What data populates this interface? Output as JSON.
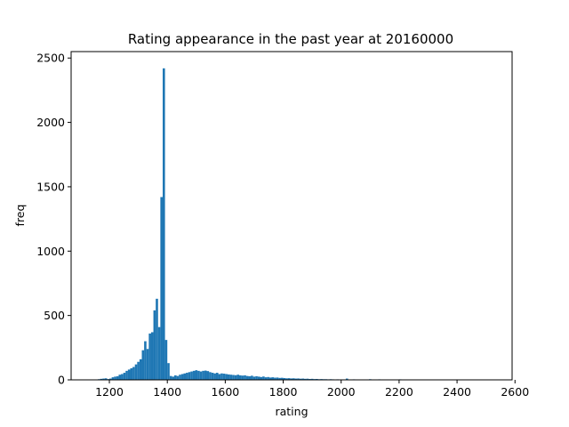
{
  "chart_data": {
    "type": "bar",
    "title": "Rating appearance in the past year at 20160000",
    "xlabel": "rating",
    "ylabel": "freq",
    "xlim": [
      1068,
      2590
    ],
    "ylim": [
      0,
      2550
    ],
    "xticks": [
      1200,
      1400,
      1600,
      1800,
      2000,
      2200,
      2400,
      2600
    ],
    "yticks": [
      0,
      500,
      1000,
      1500,
      2000,
      2500
    ],
    "grid": false,
    "bar_color": "#1f77b4",
    "bin_width": 8,
    "bins": [
      [
        1160,
        5
      ],
      [
        1168,
        8
      ],
      [
        1176,
        10
      ],
      [
        1184,
        12
      ],
      [
        1192,
        6
      ],
      [
        1200,
        10
      ],
      [
        1208,
        20
      ],
      [
        1216,
        25
      ],
      [
        1224,
        28
      ],
      [
        1232,
        40
      ],
      [
        1240,
        45
      ],
      [
        1248,
        55
      ],
      [
        1256,
        70
      ],
      [
        1264,
        80
      ],
      [
        1272,
        90
      ],
      [
        1280,
        100
      ],
      [
        1288,
        120
      ],
      [
        1296,
        140
      ],
      [
        1304,
        160
      ],
      [
        1312,
        230
      ],
      [
        1320,
        300
      ],
      [
        1328,
        240
      ],
      [
        1336,
        360
      ],
      [
        1344,
        370
      ],
      [
        1352,
        540
      ],
      [
        1360,
        630
      ],
      [
        1368,
        410
      ],
      [
        1376,
        1420
      ],
      [
        1384,
        2420
      ],
      [
        1392,
        310
      ],
      [
        1400,
        130
      ],
      [
        1408,
        30
      ],
      [
        1416,
        25
      ],
      [
        1424,
        35
      ],
      [
        1432,
        30
      ],
      [
        1440,
        40
      ],
      [
        1448,
        45
      ],
      [
        1456,
        50
      ],
      [
        1464,
        55
      ],
      [
        1472,
        60
      ],
      [
        1480,
        65
      ],
      [
        1488,
        70
      ],
      [
        1496,
        75
      ],
      [
        1504,
        70
      ],
      [
        1512,
        65
      ],
      [
        1520,
        70
      ],
      [
        1528,
        72
      ],
      [
        1536,
        68
      ],
      [
        1544,
        60
      ],
      [
        1552,
        55
      ],
      [
        1560,
        50
      ],
      [
        1568,
        55
      ],
      [
        1576,
        45
      ],
      [
        1584,
        50
      ],
      [
        1592,
        48
      ],
      [
        1600,
        45
      ],
      [
        1608,
        42
      ],
      [
        1616,
        40
      ],
      [
        1624,
        38
      ],
      [
        1632,
        36
      ],
      [
        1640,
        40
      ],
      [
        1648,
        35
      ],
      [
        1656,
        33
      ],
      [
        1664,
        35
      ],
      [
        1672,
        30
      ],
      [
        1680,
        28
      ],
      [
        1688,
        32
      ],
      [
        1696,
        25
      ],
      [
        1704,
        28
      ],
      [
        1712,
        25
      ],
      [
        1720,
        22
      ],
      [
        1728,
        26
      ],
      [
        1736,
        20
      ],
      [
        1744,
        22
      ],
      [
        1752,
        18
      ],
      [
        1760,
        20
      ],
      [
        1768,
        17
      ],
      [
        1776,
        18
      ],
      [
        1784,
        15
      ],
      [
        1792,
        16
      ],
      [
        1800,
        14
      ],
      [
        1808,
        12
      ],
      [
        1816,
        13
      ],
      [
        1824,
        11
      ],
      [
        1832,
        12
      ],
      [
        1840,
        10
      ],
      [
        1848,
        11
      ],
      [
        1856,
        9
      ],
      [
        1864,
        10
      ],
      [
        1872,
        8
      ],
      [
        1880,
        9
      ],
      [
        1888,
        7
      ],
      [
        1896,
        8
      ],
      [
        1904,
        6
      ],
      [
        1912,
        7
      ],
      [
        1920,
        5
      ],
      [
        1928,
        6
      ],
      [
        1936,
        5
      ],
      [
        1944,
        5
      ],
      [
        1952,
        4
      ],
      [
        1960,
        5
      ],
      [
        1968,
        4
      ],
      [
        1976,
        3
      ],
      [
        1984,
        4
      ],
      [
        1992,
        3
      ],
      [
        2000,
        3
      ],
      [
        2016,
        10
      ],
      [
        2040,
        4
      ],
      [
        2064,
        3
      ],
      [
        2096,
        5
      ],
      [
        2128,
        4
      ],
      [
        2152,
        3
      ],
      [
        2176,
        2
      ],
      [
        2200,
        4
      ],
      [
        2216,
        3
      ],
      [
        2256,
        2
      ],
      [
        2296,
        2
      ],
      [
        2336,
        2
      ],
      [
        2376,
        2
      ],
      [
        2416,
        2
      ],
      [
        2456,
        2
      ],
      [
        2496,
        2
      ],
      [
        2536,
        2
      ]
    ]
  }
}
